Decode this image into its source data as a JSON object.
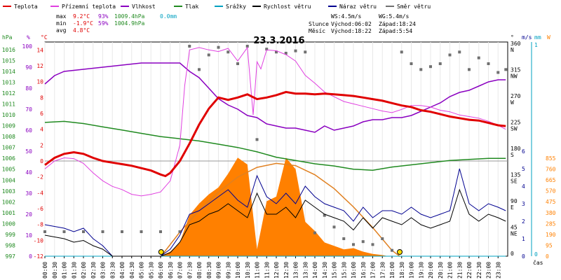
{
  "chart_data": {
    "type": "line",
    "title": "23.3.2016",
    "xlabel": "čas",
    "legend": [
      {
        "name": "Teplota",
        "color": "#e00000"
      },
      {
        "name": "Přízemní teplota",
        "color": "#e040e0"
      },
      {
        "name": "Vlhkost",
        "color": "#8a00c0"
      },
      {
        "name": "Tlak",
        "color": "#208a20"
      },
      {
        "name": "Srážky",
        "color": "#00a0c0"
      },
      {
        "name": "Rychlost větru",
        "color": "#000000"
      },
      {
        "name": "Náraz větru",
        "color": "#000090"
      },
      {
        "name": "Směr větru",
        "color": "#707070"
      }
    ],
    "stats": {
      "max": {
        "label": "max",
        "temp": "9.2°C",
        "hum": "93%",
        "press": "1009.4hPa",
        "rain": "0.0mm"
      },
      "min": {
        "label": "min",
        "temp": "-1.9°C",
        "hum": "59%",
        "press": "1004.9hPa"
      },
      "avg": {
        "label": "avg",
        "temp": "4.8°C"
      }
    },
    "wind_info": {
      "ws": "WS:4.5m/s",
      "wg": "WG:5.4m/s"
    },
    "sun": {
      "label": "Slunce",
      "rise": "Východ:06:02",
      "set": "Západ:18:24"
    },
    "moon": {
      "label": "Měsíc",
      "rise": "Východ:18:22",
      "set": "Západ:5:54"
    },
    "axes": {
      "hpa": {
        "label": "hPa",
        "ticks": [
          "1016",
          "1015",
          "1014",
          "1013",
          "1012",
          "1011",
          "1010",
          "1009",
          "1008",
          "1007",
          "1006",
          "1005",
          "1004",
          "1003",
          "1002",
          "1001",
          "1000",
          "999",
          "998",
          "997"
        ],
        "color": "#208a20"
      },
      "pct": {
        "label": "%",
        "ticks": [
          "100",
          "90",
          "80",
          "70",
          "60",
          "50",
          "40",
          "30",
          "20",
          "10",
          "0"
        ],
        "color": "#8a00c0"
      },
      "celsius": {
        "label": "°C",
        "ticks": [
          "14",
          "12",
          "10",
          "8",
          "6",
          "4",
          "2",
          "0",
          "-2",
          "-4",
          "-6",
          "-8",
          "-10",
          "-12"
        ],
        "color": "#e00000"
      },
      "deg": {
        "label": "°",
        "ticks": [
          "360 N",
          "315 NW",
          "270 W",
          "225 SW",
          "180 S",
          "135 SE",
          "90 E",
          "45 NE",
          "0"
        ],
        "color": "#000000"
      },
      "ms": {
        "label": "m/s",
        "ticks": [
          "6",
          "5",
          "4",
          "3",
          "2",
          "1",
          "0"
        ],
        "color": "#000090"
      },
      "mm": {
        "label": "mm",
        "ticks": [
          "1",
          "0"
        ],
        "color": "#00a0c0"
      },
      "w": {
        "label": "W",
        "ticks": [
          "855",
          "760",
          "665",
          "570",
          "475",
          "380",
          "285",
          "190",
          "95",
          "0"
        ],
        "color": "#ff8000"
      }
    },
    "x_ticks": [
      "00:00",
      "00:30",
      "01:00",
      "01:30",
      "02:00",
      "02:30",
      "03:00",
      "03:30",
      "04:00",
      "04:30",
      "05:00",
      "05:30",
      "06:00",
      "06:30",
      "07:00",
      "07:30",
      "08:00",
      "08:30",
      "09:00",
      "09:30",
      "10:00",
      "10:30",
      "11:00",
      "11:30",
      "12:00",
      "12:30",
      "13:00",
      "13:30",
      "14:00",
      "14:30",
      "15:00",
      "15:30",
      "16:00",
      "16:30",
      "17:00",
      "17:30",
      "18:00",
      "18:30",
      "19:00",
      "19:30",
      "20:00",
      "20:30",
      "21:00",
      "21:30",
      "22:00",
      "22:30",
      "23:00",
      "23:30"
    ],
    "series": {
      "teplota": {
        "unit": "°C",
        "x": [
          0,
          0.5,
          1,
          1.5,
          2,
          2.5,
          3,
          3.5,
          4,
          4.5,
          5,
          5.5,
          6,
          6.25,
          6.5,
          7,
          7.5,
          8,
          8.5,
          9,
          9.5,
          10,
          10.5,
          11,
          11.5,
          12,
          12.5,
          13,
          13.5,
          14,
          14.5,
          15,
          15.5,
          16,
          16.5,
          17,
          17.5,
          18,
          18.5,
          19,
          19.5,
          20,
          20.5,
          21,
          21.5,
          22,
          22.5,
          23,
          23.5,
          23.9
        ],
        "values": [
          -0.5,
          0.4,
          0.9,
          1.1,
          0.9,
          0.4,
          0.0,
          -0.2,
          -0.4,
          -0.6,
          -0.9,
          -1.2,
          -1.7,
          -1.9,
          -1.5,
          0.0,
          2.2,
          4.6,
          6.6,
          8.0,
          7.7,
          8.0,
          8.4,
          7.8,
          8.0,
          8.3,
          8.7,
          8.5,
          8.5,
          8.4,
          8.5,
          8.4,
          8.3,
          8.2,
          8.0,
          7.8,
          7.6,
          7.3,
          7.0,
          6.8,
          6.4,
          6.2,
          5.9,
          5.6,
          5.4,
          5.2,
          5.1,
          4.8,
          4.5,
          4.4
        ]
      },
      "prizemni": {
        "unit": "°C",
        "x": [
          0,
          0.5,
          1,
          1.5,
          2,
          2.5,
          3,
          3.5,
          4,
          4.5,
          5,
          5.5,
          6,
          6.5,
          7,
          7.25,
          7.5,
          8,
          8.5,
          9,
          9.5,
          10,
          10.5,
          10.8,
          11,
          11.2,
          11.5,
          12,
          12.5,
          13,
          13.5,
          14,
          14.5,
          15,
          15.5,
          16,
          16.5,
          17,
          17.5,
          18,
          18.5,
          19,
          19.5,
          20,
          20.5,
          21,
          21.5,
          22,
          22.5,
          23,
          23.5,
          23.9
        ],
        "values": [
          -1.0,
          0.0,
          0.4,
          0.3,
          -0.3,
          -1.5,
          -2.5,
          -3.2,
          -3.6,
          -4.2,
          -4.4,
          -4.2,
          -3.9,
          -2.5,
          2.0,
          9.5,
          14.0,
          14.3,
          14.0,
          13.8,
          14.2,
          12.6,
          14.3,
          5.8,
          12.5,
          11.6,
          14.0,
          13.9,
          13.4,
          12.6,
          10.8,
          9.8,
          8.7,
          8.1,
          7.5,
          7.2,
          6.9,
          6.6,
          6.3,
          6.1,
          6.5,
          7.0,
          7.0,
          6.8,
          6.4,
          6.2,
          5.8,
          5.6,
          5.4,
          5.0,
          4.5,
          4.0
        ]
      },
      "vlhkost": {
        "unit": "%",
        "x": [
          0,
          0.5,
          1,
          2,
          3,
          4,
          5,
          5.5,
          6,
          6.5,
          7,
          7.5,
          8,
          8.5,
          9,
          9.5,
          10,
          10.5,
          11,
          11.5,
          12,
          12.5,
          13,
          13.5,
          14,
          14.5,
          15,
          15.5,
          16,
          16.5,
          17,
          17.5,
          18,
          18.5,
          19,
          19.5,
          20,
          20.5,
          21,
          21.5,
          22,
          22.5,
          23,
          23.5,
          23.9
        ],
        "values": [
          82,
          86,
          88,
          89,
          90,
          91,
          92,
          92,
          92,
          92,
          92,
          88,
          85,
          80,
          75,
          72,
          70,
          67,
          66,
          63,
          62,
          61,
          61,
          60,
          59,
          62,
          60,
          61,
          62,
          64,
          65,
          65,
          66,
          66,
          67,
          69,
          71,
          73,
          76,
          78,
          79,
          81,
          83,
          84,
          84
        ]
      },
      "tlak": {
        "unit": "hPa",
        "x": [
          0,
          1,
          2,
          3,
          4,
          5,
          6,
          7,
          8,
          9,
          10,
          11,
          12,
          13,
          14,
          15,
          16,
          17,
          18,
          19,
          20,
          21,
          22,
          23,
          23.9
        ],
        "values": [
          1009.3,
          1009.4,
          1009.2,
          1008.9,
          1008.6,
          1008.3,
          1008.0,
          1007.8,
          1007.6,
          1007.3,
          1007.0,
          1006.6,
          1006.1,
          1005.8,
          1005.5,
          1005.3,
          1005.0,
          1004.9,
          1005.2,
          1005.4,
          1005.6,
          1005.8,
          1005.9,
          1006.0,
          1006.0
        ]
      },
      "srazky": {
        "unit": "mm",
        "x": [
          0,
          23.9
        ],
        "values": [
          0.0,
          0.0
        ]
      },
      "rychlost": {
        "unit": "m/s",
        "x": [
          0,
          1,
          1.5,
          2,
          2.5,
          3,
          3.5,
          4,
          4.5,
          5,
          5.5,
          6,
          6.5,
          7,
          7.5,
          8,
          8.5,
          9,
          9.5,
          10,
          10.5,
          11,
          11.5,
          12,
          12.5,
          13,
          13.5,
          14,
          14.5,
          15,
          15.5,
          16,
          16.5,
          17,
          17.5,
          18,
          18.5,
          19,
          19.5,
          20,
          20.5,
          21,
          21.5,
          22,
          22.5,
          23,
          23.5,
          23.9
        ],
        "values": [
          1.2,
          1.0,
          0.8,
          0.9,
          0.6,
          0.4,
          0.0,
          0.0,
          0.0,
          0.0,
          0.0,
          0.0,
          0.2,
          0.8,
          1.8,
          2.0,
          2.4,
          2.6,
          3.0,
          2.6,
          2.2,
          3.6,
          2.4,
          2.4,
          2.8,
          2.2,
          3.2,
          2.8,
          2.4,
          2.2,
          2.0,
          1.5,
          2.2,
          1.6,
          2.2,
          2.0,
          1.8,
          2.2,
          1.8,
          1.6,
          1.8,
          2.0,
          3.8,
          2.4,
          2.0,
          2.4,
          2.2,
          2.0
        ]
      },
      "naraz": {
        "unit": "m/s",
        "x": [
          0,
          1,
          1.5,
          2,
          2.5,
          3,
          3.5,
          4,
          4.5,
          5,
          5.5,
          6,
          6.5,
          7,
          7.5,
          8,
          8.5,
          9,
          9.5,
          10,
          10.5,
          11,
          11.5,
          12,
          12.5,
          13,
          13.5,
          14,
          14.5,
          15,
          15.5,
          16,
          16.5,
          17,
          17.5,
          18,
          18.5,
          19,
          19.5,
          20,
          20.5,
          21,
          21.5,
          22,
          22.5,
          23,
          23.5,
          23.9
        ],
        "values": [
          1.8,
          1.6,
          1.4,
          1.6,
          1.0,
          0.6,
          0.0,
          0.0,
          0.0,
          0.0,
          0.0,
          0.0,
          0.4,
          1.2,
          2.4,
          2.6,
          3.0,
          3.4,
          3.8,
          3.2,
          2.8,
          4.6,
          3.4,
          3.0,
          3.6,
          3.0,
          4.0,
          3.4,
          3.0,
          2.8,
          2.6,
          2.0,
          2.8,
          2.2,
          2.6,
          2.6,
          2.4,
          2.8,
          2.4,
          2.2,
          2.4,
          2.6,
          5.0,
          3.0,
          2.6,
          3.0,
          2.8,
          2.6
        ]
      },
      "smer": {
        "unit": "°",
        "x": [
          0,
          1,
          2,
          3,
          4,
          5,
          6,
          7,
          7.5,
          8,
          8.5,
          9,
          9.5,
          10,
          10.5,
          11,
          11.5,
          12,
          12.5,
          13,
          13.5,
          14,
          14.5,
          15,
          15.5,
          16,
          16.5,
          17,
          17.5,
          18,
          18.5,
          19,
          19.5,
          20,
          20.5,
          21,
          21.5,
          22,
          22.5,
          23,
          23.5,
          23.9
        ],
        "values": [
          42,
          42,
          42,
          42,
          42,
          42,
          42,
          42,
          360,
          320,
          345,
          358,
          350,
          330,
          360,
          200,
          355,
          350,
          348,
          352,
          350,
          40,
          70,
          50,
          30,
          20,
          25,
          20,
          30,
          10,
          350,
          330,
          320,
          325,
          330,
          345,
          350,
          320,
          340,
          330,
          315,
          320
        ]
      },
      "zareni": {
        "unit": "W",
        "x": [
          6,
          6.5,
          7,
          7.5,
          8,
          8.5,
          9,
          9.5,
          10,
          10.5,
          11,
          11.5,
          12,
          12.5,
          13,
          13.5,
          14,
          14.5,
          15,
          15.5,
          16,
          16.5,
          17,
          17.5,
          17.8
        ],
        "values": [
          0,
          40,
          120,
          360,
          460,
          540,
          600,
          720,
          860,
          800,
          60,
          480,
          520,
          860,
          760,
          300,
          220,
          120,
          90,
          60,
          70,
          40,
          20,
          10,
          0
        ]
      },
      "slunce_max": {
        "unit": "W",
        "x": [
          6.03,
          7,
          8,
          9,
          10,
          11,
          12,
          13,
          14,
          15,
          16,
          17,
          18,
          18.4
        ],
        "values": [
          0,
          210,
          400,
          560,
          690,
          775,
          810,
          790,
          710,
          590,
          430,
          250,
          50,
          0
        ]
      }
    }
  }
}
